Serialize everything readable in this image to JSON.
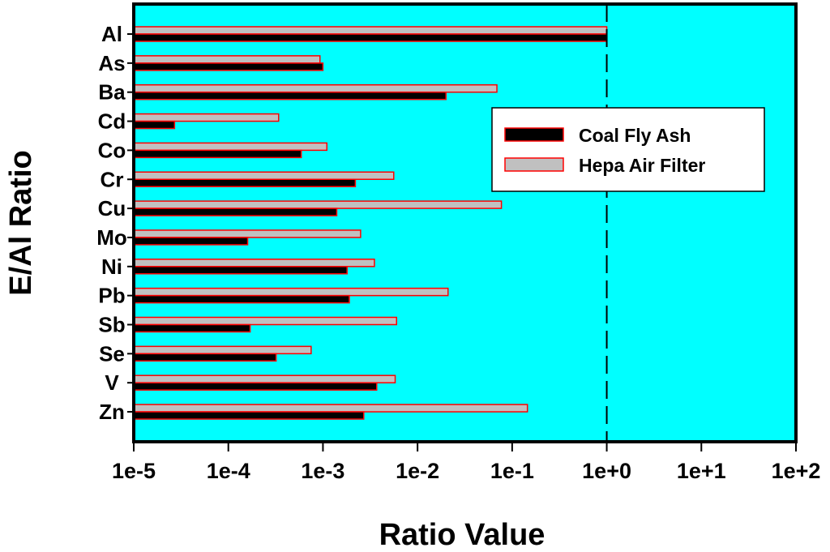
{
  "chart_data": {
    "type": "bar",
    "orientation": "horizontal",
    "title": "",
    "xlabel": "Ratio Value",
    "ylabel": "E/Al Ratio",
    "xscale": "log",
    "xlim": [
      1e-05,
      100
    ],
    "xticks": [
      1e-05,
      0.0001,
      0.001,
      0.01,
      0.1,
      1,
      10,
      100
    ],
    "xtick_labels": [
      "1e-5",
      "1e-4",
      "1e-3",
      "1e-2",
      "1e-1",
      "1e+0",
      "1e+1",
      "1e+2"
    ],
    "categories": [
      "Al",
      "As",
      "Ba",
      "Cd",
      "Co",
      "Cr",
      "Cu",
      "Mo",
      "Ni",
      "Pb",
      "Sb",
      "Se",
      "V",
      "Zn"
    ],
    "series": [
      {
        "name": "Coal Fly Ash",
        "fill": "#000000",
        "edge": "#ff0000",
        "values": [
          1.0,
          0.001,
          0.02,
          2.7e-05,
          0.00059,
          0.0022,
          0.0014,
          0.00016,
          0.0018,
          0.0019,
          0.00017,
          0.00032,
          0.0037,
          0.0027
        ]
      },
      {
        "name": "Hepa Air Filter",
        "fill": "#c0c0c0",
        "edge": "#ff0000",
        "values": [
          1.0,
          0.00093,
          0.069,
          0.00034,
          0.0011,
          0.0056,
          0.077,
          0.0025,
          0.0035,
          0.021,
          0.006,
          0.00075,
          0.0058,
          0.145
        ]
      }
    ],
    "reference_line": {
      "x": 1,
      "style": "dashed"
    },
    "legend": {
      "position": "upper-right",
      "entries": [
        "Coal Fly Ash",
        "Hepa Air Filter"
      ]
    },
    "plot_background": "#00ffff",
    "grid": false
  }
}
